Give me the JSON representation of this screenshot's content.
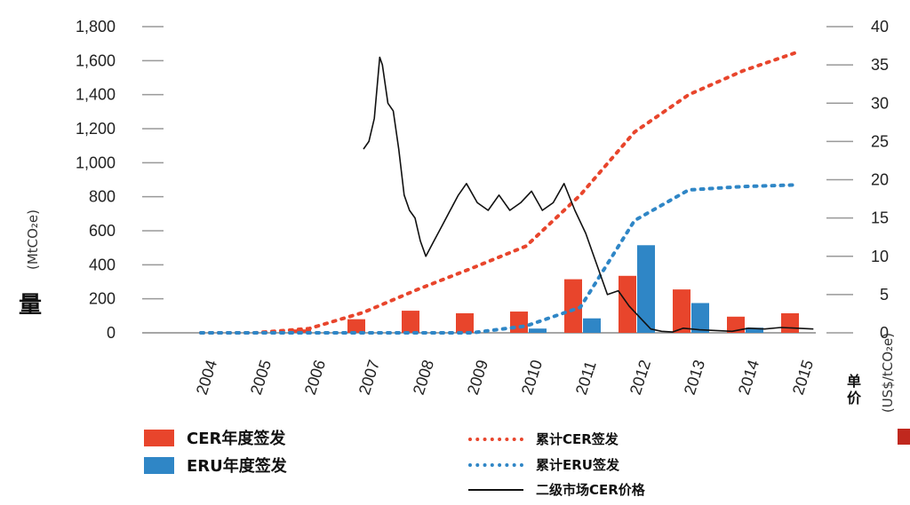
{
  "colors": {
    "cer": "#e8452c",
    "eru": "#2f86c6",
    "price": "#111111",
    "axis": "#999999",
    "edge_marker": "#c0281e"
  },
  "left_axis": {
    "label_char": "量",
    "label_unit": "(MtCO₂e)",
    "ticks": [
      "1,800",
      "1,600",
      "1,400",
      "1,200",
      "1,000",
      "800",
      "600",
      "400",
      "200",
      "0"
    ]
  },
  "right_axis": {
    "label_chars": "单价",
    "label_unit": "(US$/tCO₂e)",
    "ticks": [
      "40",
      "35",
      "30",
      "25",
      "20",
      "15",
      "10",
      "5",
      "0"
    ]
  },
  "legend": {
    "cer_annual": "CER年度签发",
    "eru_annual": "ERU年度签发",
    "cer_cumulative": "累计CER签发",
    "eru_cumulative": "累计ERU签发",
    "cer_price": "二级市场CER价格"
  },
  "chart_data": {
    "type": "bar",
    "categories": [
      "2004",
      "2005",
      "2006",
      "2007",
      "2008",
      "2009",
      "2010",
      "2011",
      "2012",
      "2013",
      "2014",
      "2015"
    ],
    "left_ylim": [
      0,
      1800
    ],
    "right_ylim": [
      0,
      40
    ],
    "series": [
      {
        "name": "CER年度签发",
        "type": "bar",
        "axis": "left",
        "values": [
          0,
          0,
          20,
          80,
          130,
          115,
          125,
          315,
          335,
          255,
          95,
          115
        ]
      },
      {
        "name": "ERU年度签发",
        "type": "bar",
        "axis": "left",
        "values": [
          0,
          0,
          0,
          0,
          0,
          0,
          25,
          85,
          515,
          175,
          30,
          0
        ]
      },
      {
        "name": "累计CER签发",
        "type": "line",
        "style": "dotted",
        "axis": "left",
        "x": [
          2004,
          2005,
          2006,
          2007,
          2008,
          2009,
          2010,
          2011,
          2012,
          2013,
          2014,
          2015
        ],
        "values": [
          0,
          0,
          25,
          120,
          255,
          380,
          510,
          810,
          1180,
          1400,
          1540,
          1650
        ]
      },
      {
        "name": "累计ERU签发",
        "type": "line",
        "style": "dotted",
        "axis": "left",
        "x": [
          2004,
          2005,
          2006,
          2007,
          2008,
          2009,
          2010,
          2011,
          2012,
          2013,
          2014,
          2015
        ],
        "values": [
          0,
          0,
          0,
          0,
          0,
          0,
          40,
          150,
          660,
          840,
          860,
          870
        ]
      },
      {
        "name": "二级市场CER价格",
        "type": "line",
        "style": "solid",
        "axis": "right",
        "x": [
          2007.0,
          2007.1,
          2007.2,
          2007.3,
          2007.35,
          2007.45,
          2007.55,
          2007.65,
          2007.75,
          2007.85,
          2007.95,
          2008.05,
          2008.15,
          2008.3,
          2008.45,
          2008.6,
          2008.75,
          2008.9,
          2009.1,
          2009.3,
          2009.5,
          2009.7,
          2009.9,
          2010.1,
          2010.3,
          2010.5,
          2010.7,
          2010.9,
          2011.1,
          2011.3,
          2011.5,
          2011.7,
          2011.9,
          2012.1,
          2012.3,
          2012.5,
          2012.7,
          2012.9,
          2013.2,
          2013.5,
          2013.8,
          2014.1,
          2014.4,
          2014.7,
          2015.0,
          2015.3
        ],
        "values": [
          24,
          25,
          28,
          36,
          35,
          30,
          29,
          24,
          18,
          16,
          15,
          12,
          10,
          12,
          14,
          16,
          18,
          19.5,
          17,
          16,
          18,
          16,
          17,
          18.5,
          16,
          17,
          19.5,
          16,
          13,
          9,
          5,
          5.5,
          3.5,
          2,
          0.5,
          0.2,
          0.1,
          0.6,
          0.4,
          0.3,
          0.2,
          0.6,
          0.5,
          0.7,
          0.6,
          0.5
        ]
      }
    ]
  }
}
